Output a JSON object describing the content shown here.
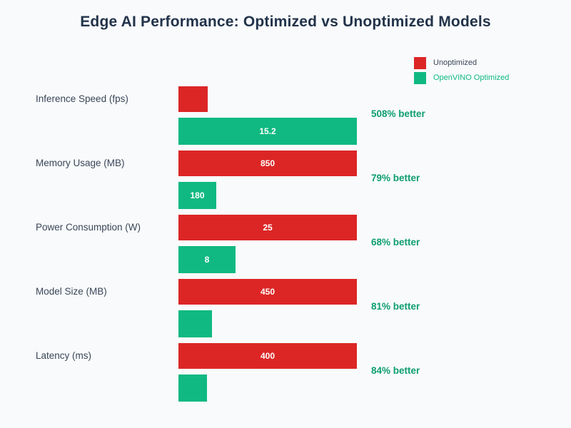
{
  "title": "Edge AI Performance: Optimized vs Unoptimized Models",
  "colors": {
    "background": "#f8fafc",
    "title_text": "#22334a",
    "category_text": "#3a4657",
    "unoptimized_bar": "#dc2626",
    "optimized_bar": "#10b981",
    "improvement_text": "#0d9e6d",
    "bar_value_text": "#ffffff"
  },
  "legend": {
    "position": "top-right",
    "items": [
      {
        "label": "Unoptimized",
        "color": "#dc2626",
        "text_color": "#3a4657"
      },
      {
        "label": "OpenVINO Optimized",
        "color": "#10b981",
        "text_color": "#10b981"
      }
    ]
  },
  "chart_data": {
    "type": "bar",
    "orientation": "horizontal",
    "title": "Edge AI Performance: Optimized vs Unoptimized Models",
    "xlabel": "",
    "ylabel": "",
    "grid": false,
    "scaling_note": "each metric group is normalized to its own maximum value; value labels hidden on bars too narrow to fit",
    "categories": [
      "Inference Speed (fps)",
      "Memory Usage (MB)",
      "Power Consumption (W)",
      "Model Size (MB)",
      "Latency (ms)"
    ],
    "series": [
      {
        "name": "Unoptimized",
        "values": [
          2.5,
          850,
          25,
          450,
          400
        ]
      },
      {
        "name": "OpenVINO Optimized",
        "values": [
          15.2,
          180,
          8,
          85,
          64
        ]
      }
    ],
    "groups": [
      {
        "category": "Inference Speed (fps)",
        "unoptimized": 2.5,
        "optimized": 15.2,
        "unoptimized_label": "",
        "optimized_label": "15.2",
        "improvement": "508% better"
      },
      {
        "category": "Memory Usage (MB)",
        "unoptimized": 850,
        "optimized": 180,
        "unoptimized_label": "850",
        "optimized_label": "180",
        "improvement": "79% better"
      },
      {
        "category": "Power Consumption (W)",
        "unoptimized": 25,
        "optimized": 8,
        "unoptimized_label": "25",
        "optimized_label": "8",
        "improvement": "68% better"
      },
      {
        "category": "Model Size (MB)",
        "unoptimized": 450,
        "optimized": 85,
        "unoptimized_label": "450",
        "optimized_label": "",
        "improvement": "81% better"
      },
      {
        "category": "Latency (ms)",
        "unoptimized": 400,
        "optimized": 64,
        "unoptimized_label": "400",
        "optimized_label": "",
        "improvement": "84% better"
      }
    ]
  }
}
